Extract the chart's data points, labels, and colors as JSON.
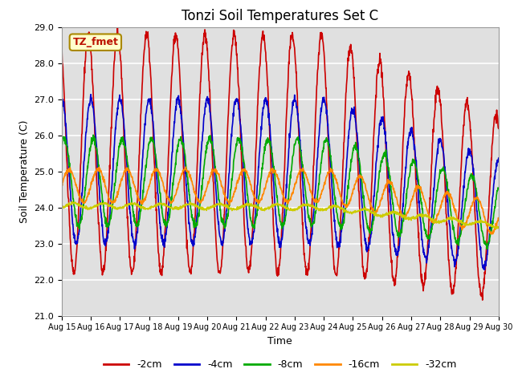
{
  "title": "Tonzi Soil Temperatures Set C",
  "xlabel": "Time",
  "ylabel": "Soil Temperature (C)",
  "ylim": [
    21.0,
    29.0
  ],
  "yticks": [
    21.0,
    22.0,
    23.0,
    24.0,
    25.0,
    26.0,
    27.0,
    28.0,
    29.0
  ],
  "xtick_labels": [
    "Aug 15",
    "Aug 16",
    "Aug 17",
    "Aug 18",
    "Aug 19",
    "Aug 20",
    "Aug 21",
    "Aug 22",
    "Aug 23",
    "Aug 24",
    "Aug 25",
    "Aug 26",
    "Aug 27",
    "Aug 28",
    "Aug 29",
    "Aug 30"
  ],
  "series_order": [
    "-2cm",
    "-4cm",
    "-8cm",
    "-16cm",
    "-32cm"
  ],
  "series": {
    "-2cm": {
      "color": "#cc0000",
      "lw": 1.2
    },
    "-4cm": {
      "color": "#0000cc",
      "lw": 1.2
    },
    "-8cm": {
      "color": "#00aa00",
      "lw": 1.2
    },
    "-16cm": {
      "color": "#ff8800",
      "lw": 1.2
    },
    "-32cm": {
      "color": "#cccc00",
      "lw": 1.2
    }
  },
  "annotation_text": "TZ_fmet",
  "annotation_color": "#bb1100",
  "annotation_bg": "#ffffcc",
  "annotation_border": "#aa8800",
  "bg_color": "#e0e0e0",
  "fig_bg": "#ffffff",
  "grid_color": "#ffffff",
  "legend_labels": [
    "-2cm",
    "-4cm",
    "-8cm",
    "-16cm",
    "-32cm"
  ],
  "legend_colors": [
    "#cc0000",
    "#0000cc",
    "#00aa00",
    "#ff8800",
    "#cccc00"
  ]
}
